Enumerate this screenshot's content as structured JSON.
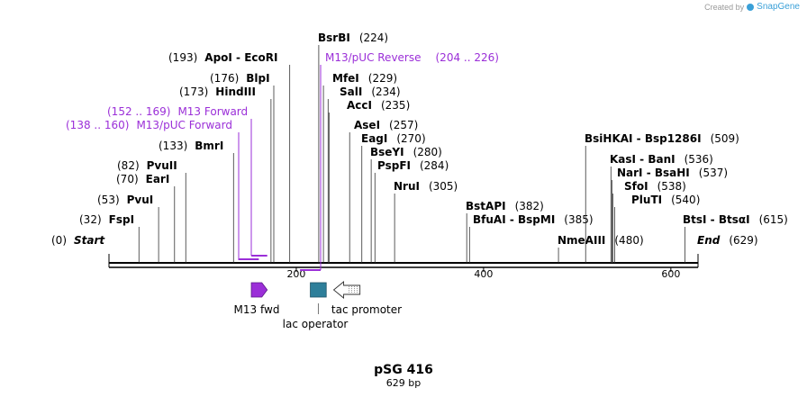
{
  "watermark": {
    "prefix": "Created by",
    "brand": "SnapGene"
  },
  "plasmid": {
    "name": "pSG 416",
    "length_label": "629 bp",
    "length": 629
  },
  "ticks": [
    {
      "value": 200,
      "label": "200"
    },
    {
      "value": 400,
      "label": "400"
    },
    {
      "value": 600,
      "label": "600"
    }
  ],
  "sites": [
    {
      "id": "start",
      "bp": 0,
      "pos_text": "(0)",
      "name": "Start",
      "italic": true,
      "side": "left"
    },
    {
      "id": "fspi",
      "bp": 32,
      "pos_text": "(32)",
      "name": "FspI",
      "side": "left"
    },
    {
      "id": "pvui",
      "bp": 53,
      "pos_text": "(53)",
      "name": "PvuI",
      "side": "left"
    },
    {
      "id": "eari",
      "bp": 70,
      "pos_text": "(70)",
      "name": "EarI",
      "side": "left"
    },
    {
      "id": "pvuii",
      "bp": 82,
      "pos_text": "(82)",
      "name": "PvuII",
      "side": "left"
    },
    {
      "id": "bmri",
      "bp": 133,
      "pos_text": "(133)",
      "name": "BmrI",
      "side": "left"
    },
    {
      "id": "hindiii",
      "bp": 173,
      "pos_text": "(173)",
      "name": "HindIII",
      "side": "left"
    },
    {
      "id": "blpi",
      "bp": 176,
      "pos_text": "(176)",
      "name": "BlpI",
      "side": "left"
    },
    {
      "id": "apoi",
      "bp": 193,
      "pos_text": "(193)",
      "name": "ApoI  -  EcoRI",
      "side": "left"
    },
    {
      "id": "bsrbi",
      "bp": 224,
      "pos_text": "(224)",
      "name": "BsrBI",
      "side": "right"
    },
    {
      "id": "mfei",
      "bp": 229,
      "pos_text": "(229)",
      "name": "MfeI",
      "side": "right"
    },
    {
      "id": "sali",
      "bp": 234,
      "pos_text": "(234)",
      "name": "SalI",
      "side": "right"
    },
    {
      "id": "acci",
      "bp": 235,
      "pos_text": "(235)",
      "name": "AccI",
      "side": "right"
    },
    {
      "id": "asei",
      "bp": 257,
      "pos_text": "(257)",
      "name": "AseI",
      "side": "right"
    },
    {
      "id": "eagi",
      "bp": 270,
      "pos_text": "(270)",
      "name": "EagI",
      "side": "right"
    },
    {
      "id": "bseyi",
      "bp": 280,
      "pos_text": "(280)",
      "name": "BseYI",
      "side": "right"
    },
    {
      "id": "pspfi",
      "bp": 284,
      "pos_text": "(284)",
      "name": "PspFI",
      "side": "right"
    },
    {
      "id": "prui",
      "bp": 305,
      "pos_text": "(305)",
      "name": "NruI",
      "side": "right"
    },
    {
      "id": "bstapi",
      "bp": 382,
      "pos_text": "(382)",
      "name": "BstAPI",
      "side": "right"
    },
    {
      "id": "bfuai",
      "bp": 385,
      "pos_text": "(385)",
      "name": "BfuAI  -  BspMI",
      "side": "right"
    },
    {
      "id": "nmeaiii",
      "bp": 480,
      "pos_text": "(480)",
      "name": "NmeAIII",
      "side": "right"
    },
    {
      "id": "bsihkai",
      "bp": 509,
      "pos_text": "(509)",
      "name": "BsiHKAI  -  Bsp1286I",
      "side": "right"
    },
    {
      "id": "kasi",
      "bp": 536,
      "pos_text": "(536)",
      "name": "KasI  -  BanI",
      "side": "right"
    },
    {
      "id": "nari",
      "bp": 537,
      "pos_text": "(537)",
      "name": "NarI  -  BsaHI",
      "side": "right"
    },
    {
      "id": "sfoi",
      "bp": 538,
      "pos_text": "(538)",
      "name": "SfoI",
      "side": "right"
    },
    {
      "id": "pluti",
      "bp": 540,
      "pos_text": "(540)",
      "name": "PluTI",
      "side": "right"
    },
    {
      "id": "btsi",
      "bp": 615,
      "pos_text": "(615)",
      "name": "BtsI  -  BtsαI",
      "side": "right"
    },
    {
      "id": "end",
      "bp": 629,
      "pos_text": "(629)",
      "name": "End",
      "italic": true,
      "side": "right"
    }
  ],
  "primers": [
    {
      "id": "m13-puc-forward",
      "name": "M13/pUC Forward",
      "range_text": "(138 .. 160)",
      "start": 138,
      "end": 160,
      "color": "#9b2fd8"
    },
    {
      "id": "m13-forward",
      "name": "M13 Forward",
      "range_text": "(152 .. 169)",
      "start": 152,
      "end": 169,
      "color": "#9b2fd8"
    },
    {
      "id": "m13-puc-reverse",
      "name": "M13/pUC Reverse",
      "range_text": "(204 .. 226)",
      "start": 204,
      "end": 226,
      "color": "#9b2fd8"
    }
  ],
  "features": [
    {
      "id": "m13-fwd",
      "name": "M13 fwd",
      "start": 152,
      "end": 169,
      "shape": "arrow-right",
      "color": "#9b2fd8"
    },
    {
      "id": "lac-operator",
      "name": "lac operator",
      "start": 215,
      "end": 232,
      "shape": "box",
      "color": "#2e7f9a"
    },
    {
      "id": "tac-promoter",
      "name": "tac promoter",
      "start": 240,
      "end": 268,
      "shape": "arrow-left-open",
      "color": "#ffffff"
    }
  ],
  "colors": {
    "primer": "#9b2fd8",
    "lac_operator": "#2e7f9a",
    "backbone": "#000000"
  }
}
